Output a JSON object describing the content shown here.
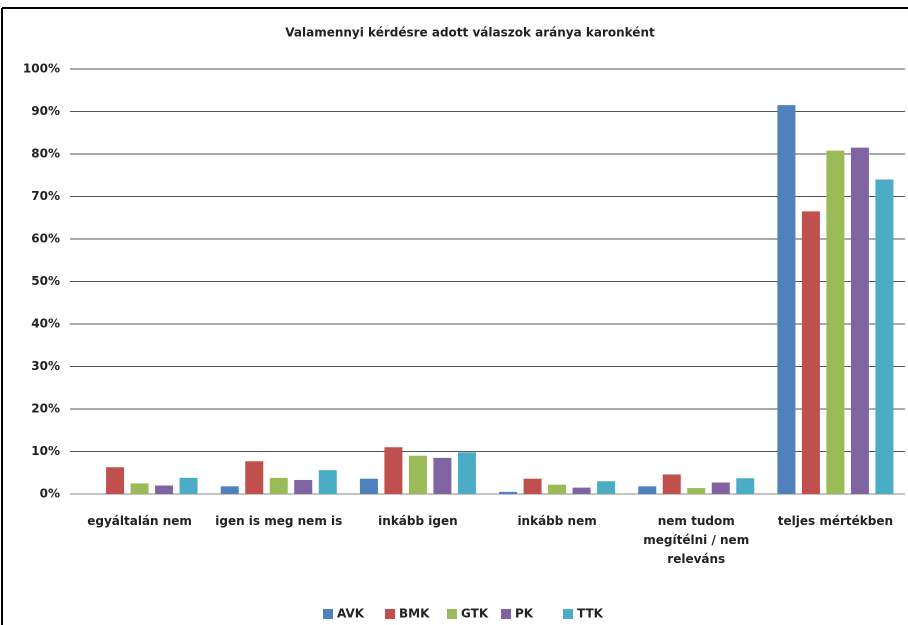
{
  "chart_data": {
    "type": "bar",
    "title": "Valamennyi kérdésre adott válaszok aránya karonként",
    "categories": [
      "egyáltalán nem",
      "igen is meg nem is",
      "inkább igen",
      "inkább nem",
      "nem tudom megítélni / nem releváns",
      "teljes mértékben"
    ],
    "series": [
      {
        "name": "AVK",
        "color": "#4f81bd",
        "values": [
          0,
          1.8,
          3.6,
          0.5,
          1.8,
          91.5
        ]
      },
      {
        "name": "BMK",
        "color": "#c0504d",
        "values": [
          6.3,
          7.7,
          11,
          3.6,
          4.6,
          66.5
        ]
      },
      {
        "name": "GTK",
        "color": "#9bbb59",
        "values": [
          2.5,
          3.8,
          9,
          2.2,
          1.4,
          80.8
        ]
      },
      {
        "name": "PK",
        "color": "#8064a2",
        "values": [
          2,
          3.3,
          8.5,
          1.5,
          2.7,
          81.5
        ]
      },
      {
        "name": "TTK",
        "color": "#4bacc6",
        "values": [
          3.8,
          5.6,
          9.8,
          3,
          3.7,
          74
        ]
      }
    ],
    "ylim": [
      0,
      100
    ],
    "yticks": [
      {
        "value": 0,
        "label": "0%"
      },
      {
        "value": 10,
        "label": "10%"
      },
      {
        "value": 20,
        "label": "20%"
      },
      {
        "value": 30,
        "label": "30%"
      },
      {
        "value": 40,
        "label": "40%"
      },
      {
        "value": 50,
        "label": "50%"
      },
      {
        "value": 60,
        "label": "60%"
      },
      {
        "value": 70,
        "label": "70%"
      },
      {
        "value": 80,
        "label": "80%"
      },
      {
        "value": 90,
        "label": "90%"
      },
      {
        "value": 100,
        "label": "100%"
      }
    ],
    "grid": true,
    "legend": "bottom"
  }
}
